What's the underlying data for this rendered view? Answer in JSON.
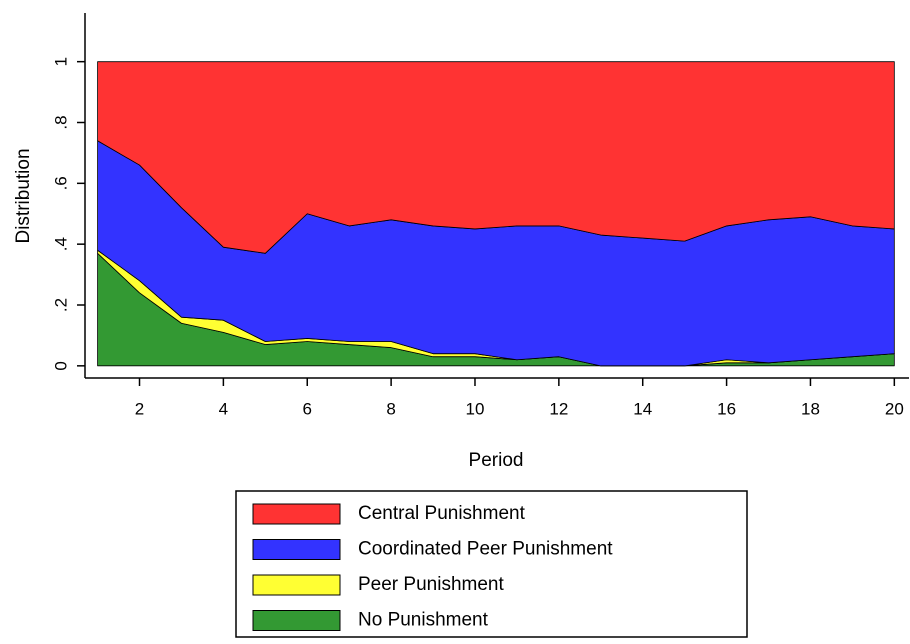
{
  "chart_data": {
    "type": "stacked_area",
    "xlabel": "Period",
    "ylabel": "Distribution",
    "x": [
      1,
      2,
      3,
      4,
      5,
      6,
      7,
      8,
      9,
      10,
      11,
      12,
      13,
      14,
      15,
      16,
      17,
      18,
      19,
      20
    ],
    "series": [
      {
        "name": "No Punishment",
        "color": "#339933",
        "values": [
          0.37,
          0.24,
          0.14,
          0.11,
          0.07,
          0.08,
          0.07,
          0.06,
          0.03,
          0.03,
          0.02,
          0.03,
          0,
          0,
          0,
          0.01,
          0.01,
          0.02,
          0.03,
          0.04
        ]
      },
      {
        "name": "Peer Punishment",
        "color": "#ffff33",
        "values": [
          0.01,
          0.04,
          0.02,
          0.04,
          0.01,
          0.01,
          0.01,
          0.02,
          0.01,
          0.01,
          0,
          0,
          0,
          0,
          0,
          0.01,
          0,
          0,
          0,
          0
        ]
      },
      {
        "name": "Coordinated Peer Punishment",
        "color": "#3333ff",
        "values": [
          0.36,
          0.38,
          0.36,
          0.24,
          0.29,
          0.41,
          0.38,
          0.4,
          0.42,
          0.41,
          0.44,
          0.43,
          0.43,
          0.42,
          0.41,
          0.44,
          0.47,
          0.47,
          0.43,
          0.41
        ]
      },
      {
        "name": "Central Punishment",
        "color": "#ff3333",
        "values": [
          0.26,
          0.34,
          0.48,
          0.61,
          0.63,
          0.5,
          0.54,
          0.52,
          0.54,
          0.55,
          0.54,
          0.54,
          0.57,
          0.58,
          0.59,
          0.54,
          0.52,
          0.51,
          0.54,
          0.55
        ]
      }
    ],
    "xlim": [
      0.7,
      20.35
    ],
    "ylim": [
      -0.04,
      1.16
    ],
    "xticks": [
      2,
      4,
      6,
      8,
      10,
      12,
      14,
      16,
      18,
      20
    ],
    "yticks": [
      0,
      {
        "value": 0.2,
        "label": ".2"
      },
      {
        "value": 0.4,
        "label": ".4"
      },
      {
        "value": 0.6,
        "label": ".6"
      },
      {
        "value": 0.8,
        "label": ".8"
      },
      1
    ]
  }
}
